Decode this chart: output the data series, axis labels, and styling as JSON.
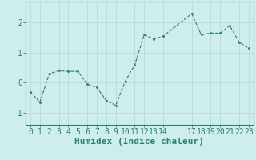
{
  "x": [
    0,
    1,
    2,
    3,
    4,
    5,
    6,
    7,
    8,
    9,
    10,
    11,
    12,
    13,
    14,
    17,
    18,
    19,
    20,
    21,
    22,
    23
  ],
  "y": [
    -0.3,
    -0.65,
    0.3,
    0.4,
    0.38,
    0.38,
    -0.05,
    -0.15,
    -0.6,
    -0.75,
    0.05,
    0.6,
    1.6,
    1.45,
    1.55,
    2.3,
    1.6,
    1.65,
    1.65,
    1.9,
    1.35,
    1.15
  ],
  "xticks": [
    0,
    1,
    2,
    3,
    4,
    5,
    6,
    7,
    8,
    9,
    10,
    11,
    12,
    13,
    14,
    17,
    18,
    19,
    20,
    21,
    22,
    23
  ],
  "yticks": [
    -1,
    0,
    1,
    2
  ],
  "xlim": [
    -0.5,
    23.5
  ],
  "ylim": [
    -1.4,
    2.7
  ],
  "xlabel": "Humidex (Indice chaleur)",
  "line_color": "#2d7d6e",
  "marker_color": "#2d7d6e",
  "bg_color": "#ceeeed",
  "grid_color": "#b8dbd9",
  "axes_color": "#2d7d6e",
  "tick_color": "#2d7d6e",
  "xlabel_color": "#2d7d6e",
  "font_size": 7,
  "xlabel_fontsize": 8
}
